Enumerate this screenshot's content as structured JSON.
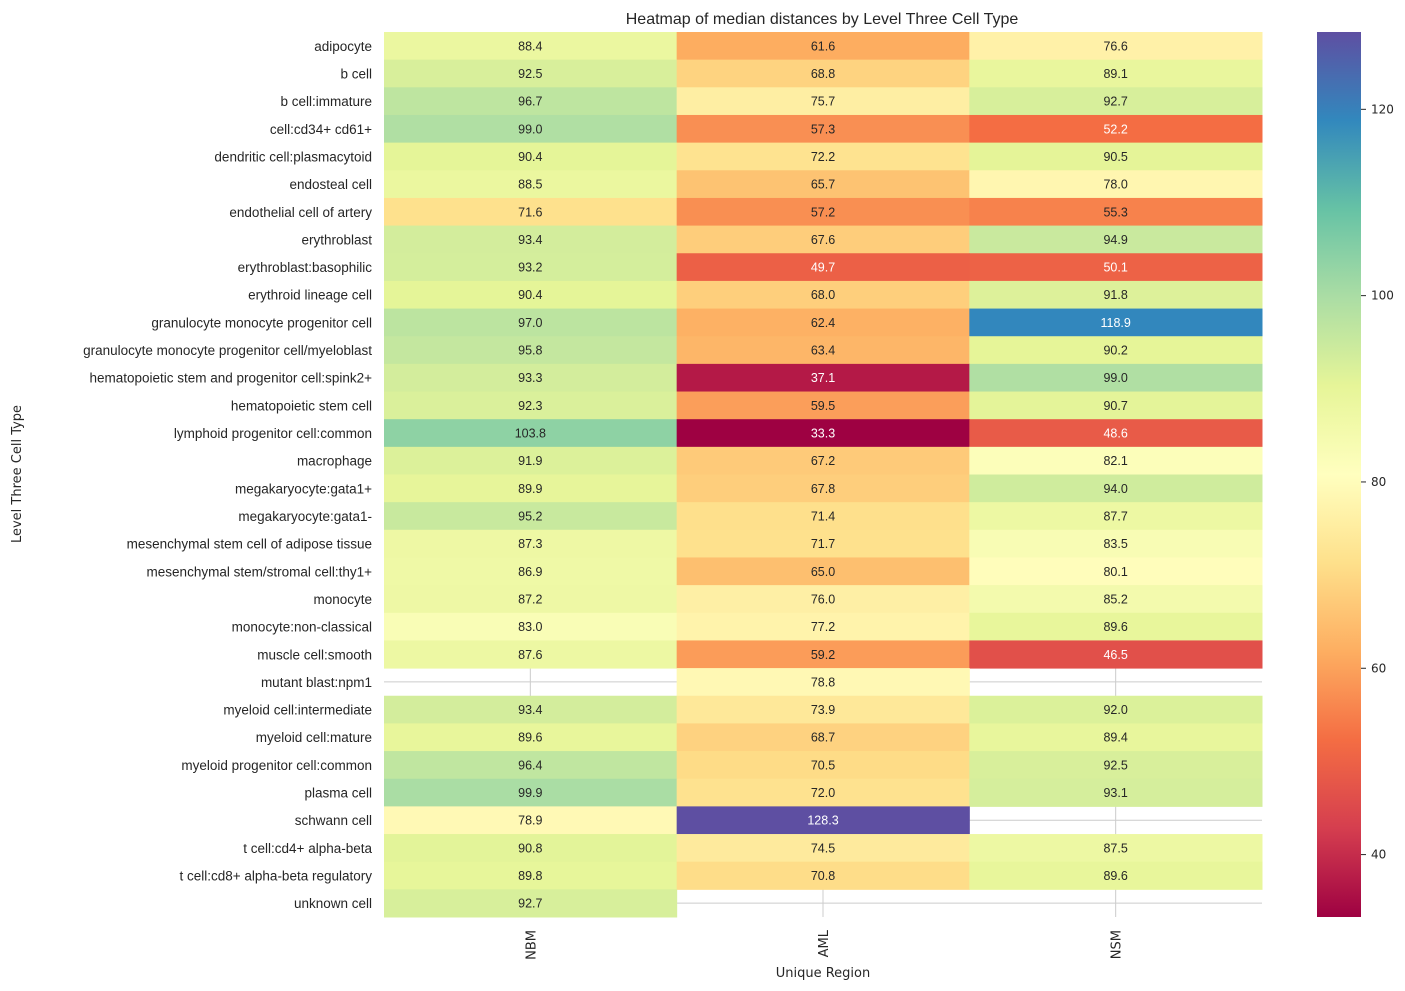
{
  "chart_data": {
    "type": "heatmap",
    "title": "Heatmap of median distances by Level Three Cell Type",
    "xlabel": "Unique Region",
    "ylabel": "Level Three Cell Type",
    "colormap": "Spectral",
    "columns": [
      "NBM",
      "AML",
      "NSM"
    ],
    "rows": [
      "adipocyte",
      "b cell",
      "b cell:immature",
      "cell:cd34+ cd61+",
      "dendritic cell:plasmacytoid",
      "endosteal cell",
      "endothelial cell of artery",
      "erythroblast",
      "erythroblast:basophilic",
      "erythroid lineage cell",
      "granulocyte monocyte progenitor cell",
      "granulocyte monocyte progenitor cell/myeloblast",
      "hematopoietic stem and progenitor cell:spink2+",
      "hematopoietic stem cell",
      "lymphoid progenitor cell:common",
      "macrophage",
      "megakaryocyte:gata1+",
      "megakaryocyte:gata1-",
      "mesenchymal stem cell of adipose tissue",
      "mesenchymal stem/stromal cell:thy1+",
      "monocyte",
      "monocyte:non-classical",
      "muscle cell:smooth",
      "mutant blast:npm1",
      "myeloid cell:intermediate",
      "myeloid cell:mature",
      "myeloid progenitor cell:common",
      "plasma cell",
      "schwann cell",
      "t cell:cd4+ alpha-beta",
      "t cell:cd8+ alpha-beta regulatory ",
      "unknown cell"
    ],
    "values": [
      [
        88.4,
        61.6,
        76.6
      ],
      [
        92.5,
        68.8,
        89.1
      ],
      [
        96.7,
        75.7,
        92.7
      ],
      [
        99.0,
        57.3,
        52.2
      ],
      [
        90.4,
        72.2,
        90.5
      ],
      [
        88.5,
        65.7,
        78.0
      ],
      [
        71.6,
        57.2,
        55.3
      ],
      [
        93.4,
        67.6,
        94.9
      ],
      [
        93.2,
        49.7,
        50.1
      ],
      [
        90.4,
        68.0,
        91.8
      ],
      [
        97.0,
        62.4,
        118.9
      ],
      [
        95.8,
        63.4,
        90.2
      ],
      [
        93.3,
        37.1,
        99.0
      ],
      [
        92.3,
        59.5,
        90.7
      ],
      [
        103.8,
        33.3,
        48.6
      ],
      [
        91.9,
        67.2,
        82.1
      ],
      [
        89.9,
        67.8,
        94.0
      ],
      [
        95.2,
        71.4,
        87.7
      ],
      [
        87.3,
        71.7,
        83.5
      ],
      [
        86.9,
        65.0,
        80.1
      ],
      [
        87.2,
        76.0,
        85.2
      ],
      [
        83.0,
        77.2,
        89.6
      ],
      [
        87.6,
        59.2,
        46.5
      ],
      [
        null,
        78.8,
        null
      ],
      [
        93.4,
        73.9,
        92.0
      ],
      [
        89.6,
        68.7,
        89.4
      ],
      [
        96.4,
        70.5,
        92.5
      ],
      [
        99.9,
        72.0,
        93.1
      ],
      [
        78.9,
        128.3,
        null
      ],
      [
        90.8,
        74.5,
        87.5
      ],
      [
        89.8,
        70.8,
        89.6
      ],
      [
        92.7,
        null,
        null
      ]
    ],
    "annotation_format": "0.1f",
    "vmin": 33.3,
    "vmax": 128.3,
    "colorbar": {
      "ticks": [
        40,
        60,
        80,
        100,
        120
      ],
      "tick_labels": [
        "40",
        "60",
        "80",
        "100",
        "120"
      ],
      "placement": "right"
    },
    "grid": true,
    "missing_cells": "blank (white, showing grid lines)"
  }
}
